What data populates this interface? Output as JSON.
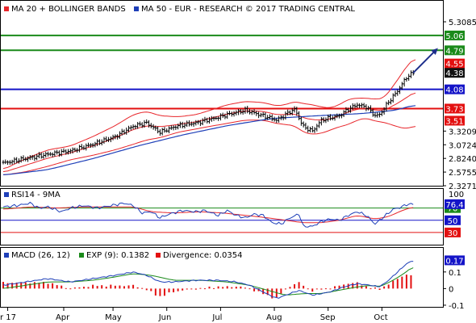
{
  "chart_data": {
    "type": "line",
    "price_panel": {
      "legend": [
        {
          "label": "MA 20 + BOLLINGER BANDS",
          "color": "#e8262b"
        },
        {
          "label": "MA 50 - EUR - RESEARCH © 2017 TRADING CENTRAL",
          "color": "#1e3fb8"
        }
      ],
      "y_ticks": [
        "5.3085",
        "4.79",
        "4.55",
        "4.38",
        "4.08",
        "3.73",
        "3.51",
        "3.3209",
        "3.0724",
        "2.8240",
        "2.5755",
        "2.3271"
      ],
      "tick_values": [
        5.3085,
        3.3209,
        3.0724,
        2.824,
        2.5755,
        2.3271
      ],
      "levels": [
        {
          "label": "5.06",
          "value": 5.06,
          "color": "#1a8a1a"
        },
        {
          "label": "4.79",
          "value": 4.79,
          "color": "#1a8a1a"
        },
        {
          "label": "4.08",
          "value": 4.08,
          "color": "#1414c8"
        },
        {
          "label": "3.73",
          "value": 3.73,
          "color": "#e31010"
        }
      ],
      "tags": [
        {
          "label": "4.55",
          "value": 4.55,
          "color": "#e31010"
        },
        {
          "label": "4.38",
          "value": 4.38,
          "color": "#111111"
        },
        {
          "label": "3.51",
          "value": 3.51,
          "color": "#e31010"
        }
      ],
      "ylim": [
        2.3271,
        5.3085
      ],
      "x_range": [
        0,
        184
      ],
      "close_anchors": [
        [
          0,
          2.74
        ],
        [
          10,
          2.82
        ],
        [
          20,
          2.9
        ],
        [
          30,
          2.96
        ],
        [
          40,
          3.08
        ],
        [
          50,
          3.22
        ],
        [
          58,
          3.41
        ],
        [
          64,
          3.47
        ],
        [
          70,
          3.3
        ],
        [
          78,
          3.42
        ],
        [
          86,
          3.47
        ],
        [
          94,
          3.55
        ],
        [
          100,
          3.62
        ],
        [
          108,
          3.7
        ],
        [
          116,
          3.6
        ],
        [
          122,
          3.52
        ],
        [
          126,
          3.62
        ],
        [
          130,
          3.72
        ],
        [
          134,
          3.4
        ],
        [
          138,
          3.32
        ],
        [
          142,
          3.52
        ],
        [
          146,
          3.56
        ],
        [
          150,
          3.6
        ],
        [
          154,
          3.72
        ],
        [
          158,
          3.8
        ],
        [
          162,
          3.76
        ],
        [
          166,
          3.6
        ],
        [
          168,
          3.62
        ],
        [
          172,
          3.85
        ],
        [
          176,
          4.05
        ],
        [
          180,
          4.3
        ],
        [
          183,
          4.38
        ]
      ],
      "sma50_anchors": [
        [
          0,
          2.52
        ],
        [
          20,
          2.62
        ],
        [
          40,
          2.82
        ],
        [
          60,
          3.05
        ],
        [
          80,
          3.25
        ],
        [
          100,
          3.42
        ],
        [
          120,
          3.55
        ],
        [
          140,
          3.6
        ],
        [
          160,
          3.64
        ],
        [
          175,
          3.7
        ],
        [
          184,
          3.8
        ]
      ],
      "band_up_anchors": [
        [
          0,
          2.62
        ],
        [
          10,
          2.82
        ],
        [
          20,
          2.98
        ],
        [
          30,
          3.05
        ],
        [
          40,
          3.22
        ],
        [
          50,
          3.42
        ],
        [
          58,
          3.62
        ],
        [
          64,
          3.68
        ],
        [
          70,
          3.6
        ],
        [
          78,
          3.58
        ],
        [
          86,
          3.62
        ],
        [
          94,
          3.72
        ],
        [
          100,
          3.8
        ],
        [
          108,
          3.86
        ],
        [
          116,
          3.84
        ],
        [
          122,
          3.78
        ],
        [
          126,
          3.8
        ],
        [
          130,
          3.86
        ],
        [
          134,
          3.82
        ],
        [
          138,
          3.8
        ],
        [
          142,
          3.76
        ],
        [
          146,
          3.74
        ],
        [
          150,
          3.8
        ],
        [
          154,
          3.9
        ],
        [
          158,
          3.92
        ],
        [
          162,
          3.92
        ],
        [
          166,
          3.9
        ],
        [
          170,
          3.92
        ],
        [
          176,
          4.25
        ],
        [
          180,
          4.5
        ],
        [
          184,
          4.66
        ]
      ],
      "band_low_anchors": [
        [
          0,
          2.52
        ],
        [
          10,
          2.58
        ],
        [
          20,
          2.68
        ],
        [
          30,
          2.8
        ],
        [
          40,
          2.88
        ],
        [
          50,
          2.98
        ],
        [
          58,
          3.08
        ],
        [
          64,
          3.16
        ],
        [
          70,
          3.2
        ],
        [
          78,
          3.3
        ],
        [
          86,
          3.36
        ],
        [
          94,
          3.42
        ],
        [
          100,
          3.46
        ],
        [
          108,
          3.52
        ],
        [
          116,
          3.52
        ],
        [
          122,
          3.46
        ],
        [
          126,
          3.44
        ],
        [
          130,
          3.42
        ],
        [
          134,
          3.3
        ],
        [
          138,
          3.26
        ],
        [
          142,
          3.28
        ],
        [
          146,
          3.34
        ],
        [
          150,
          3.4
        ],
        [
          154,
          3.44
        ],
        [
          158,
          3.52
        ],
        [
          162,
          3.56
        ],
        [
          166,
          3.5
        ],
        [
          170,
          3.48
        ],
        [
          176,
          3.4
        ],
        [
          180,
          3.36
        ],
        [
          184,
          3.42
        ]
      ],
      "arrow": {
        "from": [
          183,
          4.38
        ],
        "to": [
          193,
          4.79
        ],
        "color": "#1e2f8c"
      }
    },
    "rsi_panel": {
      "legend": [
        {
          "label": "RSI14 - 9MA",
          "color": "#1e3fb8"
        }
      ],
      "y_ticks": [
        "100",
        "76.4",
        "70",
        "50",
        "30"
      ],
      "tick_values": [
        100,
        70,
        50,
        30
      ],
      "tag_values": [
        76.4
      ],
      "ylim": [
        10,
        100
      ],
      "levels": [
        {
          "value": 70,
          "color": "#1a8a1a"
        },
        {
          "value": 30,
          "color": "#e31010"
        }
      ],
      "rsi_anchors": [
        [
          0,
          72
        ],
        [
          6,
          74
        ],
        [
          12,
          78
        ],
        [
          16,
          70
        ],
        [
          20,
          72
        ],
        [
          26,
          64
        ],
        [
          30,
          70
        ],
        [
          36,
          74
        ],
        [
          42,
          70
        ],
        [
          48,
          74
        ],
        [
          54,
          78
        ],
        [
          58,
          74
        ],
        [
          62,
          62
        ],
        [
          66,
          64
        ],
        [
          70,
          54
        ],
        [
          74,
          60
        ],
        [
          80,
          66
        ],
        [
          86,
          64
        ],
        [
          90,
          66
        ],
        [
          96,
          58
        ],
        [
          100,
          66
        ],
        [
          104,
          58
        ],
        [
          108,
          54
        ],
        [
          112,
          60
        ],
        [
          116,
          58
        ],
        [
          120,
          46
        ],
        [
          124,
          44
        ],
        [
          128,
          54
        ],
        [
          132,
          60
        ],
        [
          134,
          40
        ],
        [
          138,
          40
        ],
        [
          142,
          48
        ],
        [
          146,
          52
        ],
        [
          150,
          50
        ],
        [
          154,
          58
        ],
        [
          158,
          64
        ],
        [
          162,
          58
        ],
        [
          166,
          44
        ],
        [
          170,
          56
        ],
        [
          174,
          68
        ],
        [
          178,
          72
        ],
        [
          180,
          76
        ],
        [
          183,
          76.4
        ]
      ],
      "ma9_anchors": [
        [
          0,
          68
        ],
        [
          12,
          72
        ],
        [
          24,
          70
        ],
        [
          36,
          72
        ],
        [
          48,
          72
        ],
        [
          58,
          72
        ],
        [
          66,
          64
        ],
        [
          76,
          62
        ],
        [
          88,
          64
        ],
        [
          98,
          62
        ],
        [
          108,
          58
        ],
        [
          118,
          54
        ],
        [
          126,
          50
        ],
        [
          134,
          46
        ],
        [
          142,
          46
        ],
        [
          150,
          50
        ],
        [
          158,
          58
        ],
        [
          166,
          52
        ],
        [
          172,
          56
        ],
        [
          178,
          66
        ],
        [
          183,
          72
        ]
      ]
    },
    "macd_panel": {
      "legend": [
        {
          "label": "MACD (26, 12)",
          "color": "#1e3fb8"
        },
        {
          "label": "EXP (9): 0.1382",
          "color": "#1a8a1a"
        },
        {
          "label": "Divergence: 0.0354",
          "color": "#e31010"
        }
      ],
      "y_ticks": [
        "0.17",
        "0.1",
        "0",
        "-0.1"
      ],
      "tick_values": [
        0.1,
        0,
        -0.1
      ],
      "tag_values": [
        0.17
      ],
      "ylim": [
        -0.11,
        0.24
      ],
      "macd_anchors": [
        [
          0,
          0.02
        ],
        [
          10,
          0.04
        ],
        [
          20,
          0.06
        ],
        [
          30,
          0.04
        ],
        [
          40,
          0.06
        ],
        [
          50,
          0.08
        ],
        [
          58,
          0.1
        ],
        [
          64,
          0.08
        ],
        [
          70,
          0.04
        ],
        [
          76,
          0.04
        ],
        [
          86,
          0.05
        ],
        [
          96,
          0.05
        ],
        [
          104,
          0.04
        ],
        [
          110,
          0.02
        ],
        [
          116,
          -0.02
        ],
        [
          122,
          -0.06
        ],
        [
          126,
          -0.04
        ],
        [
          132,
          -0.01
        ],
        [
          138,
          -0.04
        ],
        [
          146,
          -0.02
        ],
        [
          152,
          0.01
        ],
        [
          158,
          0.03
        ],
        [
          164,
          0.02
        ],
        [
          168,
          0.01
        ],
        [
          172,
          0.05
        ],
        [
          176,
          0.1
        ],
        [
          180,
          0.15
        ],
        [
          183,
          0.17
        ]
      ],
      "exp_anchors": [
        [
          0,
          0.0
        ],
        [
          10,
          0.02
        ],
        [
          20,
          0.04
        ],
        [
          30,
          0.04
        ],
        [
          40,
          0.05
        ],
        [
          50,
          0.07
        ],
        [
          58,
          0.09
        ],
        [
          66,
          0.08
        ],
        [
          76,
          0.05
        ],
        [
          88,
          0.05
        ],
        [
          100,
          0.04
        ],
        [
          110,
          0.02
        ],
        [
          118,
          -0.01
        ],
        [
          126,
          -0.04
        ],
        [
          134,
          -0.03
        ],
        [
          142,
          -0.03
        ],
        [
          150,
          -0.01
        ],
        [
          158,
          0.01
        ],
        [
          164,
          0.02
        ],
        [
          168,
          0.01
        ],
        [
          174,
          0.05
        ],
        [
          180,
          0.1
        ],
        [
          183,
          0.138
        ]
      ]
    },
    "x_axis": {
      "labels": [
        {
          "label": "r 17",
          "pos": 2
        },
        {
          "label": "Apr",
          "pos": 27
        },
        {
          "label": "May",
          "pos": 49
        },
        {
          "label": "Jun",
          "pos": 73
        },
        {
          "label": "Jul",
          "pos": 97
        },
        {
          "label": "Aug",
          "pos": 121
        },
        {
          "label": "Sep",
          "pos": 145
        },
        {
          "label": "Oct",
          "pos": 169
        }
      ]
    }
  }
}
